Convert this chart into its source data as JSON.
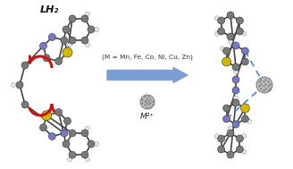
{
  "bg_color": "#ffffff",
  "arrow_color": "#7b9fd4",
  "arrow_text": "M²⁺",
  "sub_text": "(M = Mn, Fe, Co, Ni, Cu, Zn)",
  "label_text": "LH₂",
  "metal_color": "#aaaaaa",
  "carbon_color": "#7a7a7a",
  "nitrogen_color": "#7878c8",
  "sulfur_color": "#d4b800",
  "hydrogen_color": "#e8e8e8",
  "dashed_color": "#5588ee",
  "red_arrow_color": "#cc1111",
  "bond_color": "#444444",
  "figsize": [
    3.28,
    1.89
  ],
  "dpi": 100
}
